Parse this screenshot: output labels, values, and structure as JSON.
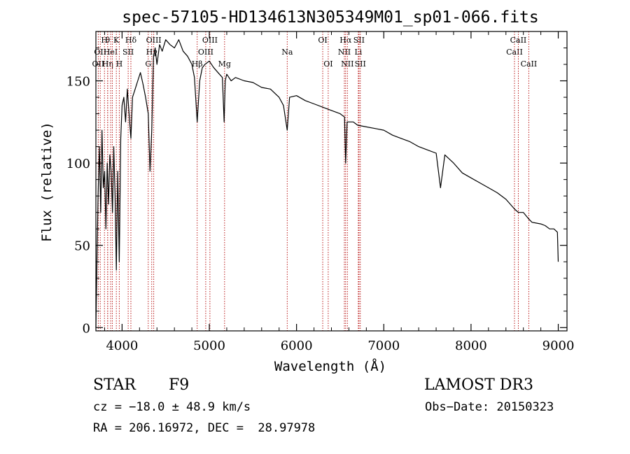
{
  "chart_data": {
    "type": "line",
    "title": "spec-57105-HD134613N305349M01_sp01-066.fits",
    "xlabel": "Wavelength (Å)",
    "ylabel": "Flux (relative)",
    "xlim": [
      3700,
      9100
    ],
    "ylim": [
      -2,
      180
    ],
    "x_ticks": [
      4000,
      5000,
      6000,
      7000,
      8000,
      9000
    ],
    "y_ticks": [
      0,
      50,
      100,
      150
    ],
    "x_tick_labels": [
      "4000",
      "5000",
      "6000",
      "7000",
      "8000",
      "9000"
    ],
    "y_tick_labels": [
      "0",
      "50",
      "100",
      "150"
    ],
    "series": [
      {
        "name": "spectrum",
        "x": [
          3700,
          3712,
          3725,
          3740,
          3755,
          3770,
          3785,
          3800,
          3815,
          3830,
          3845,
          3860,
          3875,
          3890,
          3905,
          3920,
          3934,
          3950,
          3968,
          3985,
          4000,
          4020,
          4040,
          4060,
          4080,
          4101,
          4120,
          4150,
          4180,
          4210,
          4240,
          4270,
          4300,
          4320,
          4340,
          4360,
          4380,
          4400,
          4430,
          4460,
          4500,
          4550,
          4600,
          4650,
          4700,
          4750,
          4800,
          4830,
          4861,
          4890,
          4920,
          4950,
          5000,
          5050,
          5100,
          5150,
          5170,
          5183,
          5200,
          5250,
          5300,
          5400,
          5500,
          5600,
          5700,
          5800,
          5850,
          5893,
          5920,
          6000,
          6100,
          6200,
          6300,
          6400,
          6500,
          6550,
          6563,
          6580,
          6650,
          6700,
          6800,
          6900,
          7000,
          7100,
          7200,
          7300,
          7400,
          7500,
          7600,
          7650,
          7700,
          7800,
          7900,
          8000,
          8100,
          8200,
          8300,
          8400,
          8500,
          8542,
          8600,
          8662,
          8700,
          8800,
          8850,
          8900,
          8950,
          8990,
          9000
        ],
        "y": [
          0,
          40,
          80,
          110,
          70,
          120,
          85,
          95,
          60,
          100,
          75,
          105,
          95,
          70,
          110,
          80,
          35,
          95,
          40,
          115,
          135,
          140,
          125,
          145,
          130,
          115,
          140,
          145,
          150,
          155,
          148,
          140,
          130,
          95,
          120,
          165,
          170,
          160,
          172,
          168,
          175,
          172,
          170,
          175,
          168,
          165,
          160,
          152,
          125,
          150,
          158,
          160,
          162,
          158,
          155,
          152,
          125,
          150,
          154,
          150,
          152,
          150,
          149,
          146,
          145,
          140,
          135,
          120,
          140,
          141,
          138,
          136,
          134,
          132,
          130,
          128,
          100,
          125,
          125,
          123,
          122,
          121,
          120,
          117,
          115,
          113,
          110,
          108,
          106,
          85,
          105,
          100,
          94,
          91,
          88,
          85,
          82,
          78,
          72,
          70,
          70,
          66,
          64,
          63,
          62,
          60,
          60,
          58,
          40
        ]
      }
    ],
    "lines": [
      {
        "wavelength": 3727,
        "row": 2,
        "label": "OII"
      },
      {
        "wavelength": 3750,
        "row": 1,
        "label": "OII"
      },
      {
        "wavelength": 3798,
        "row": 0,
        "label": "H"
      },
      {
        "wavelength": 3835,
        "row": 0,
        "label": "θ"
      },
      {
        "wavelength": 3835,
        "row": 2,
        "label": "Hη"
      },
      {
        "wavelength": 3869,
        "row": 1,
        "label": "HeI"
      },
      {
        "wavelength": 3889,
        "row": 1,
        "label": ""
      },
      {
        "wavelength": 3934,
        "row": 0,
        "label": "K"
      },
      {
        "wavelength": 3968,
        "row": 2,
        "label": "H"
      },
      {
        "wavelength": 4070,
        "row": 1,
        "label": "SII"
      },
      {
        "wavelength": 4101,
        "row": 0,
        "label": "Hδ"
      },
      {
        "wavelength": 4300,
        "row": 2,
        "label": "G"
      },
      {
        "wavelength": 4340,
        "row": 1,
        "label": "Hγ"
      },
      {
        "wavelength": 4363,
        "row": 0,
        "label": "OIII"
      },
      {
        "wavelength": 4861,
        "row": 2,
        "label": "Hβ"
      },
      {
        "wavelength": 4959,
        "row": 1,
        "label": "OIII"
      },
      {
        "wavelength": 5007,
        "row": 0,
        "label": "OIII"
      },
      {
        "wavelength": 5175,
        "row": 2,
        "label": "Mg"
      },
      {
        "wavelength": 5893,
        "row": 1,
        "label": "Na"
      },
      {
        "wavelength": 6300,
        "row": 0,
        "label": "OI"
      },
      {
        "wavelength": 6363,
        "row": 2,
        "label": "OI"
      },
      {
        "wavelength": 6548,
        "row": 1,
        "label": "NII"
      },
      {
        "wavelength": 6563,
        "row": 0,
        "label": "Hα"
      },
      {
        "wavelength": 6583,
        "row": 2,
        "label": "NII"
      },
      {
        "wavelength": 6708,
        "row": 1,
        "label": "Li"
      },
      {
        "wavelength": 6716,
        "row": 0,
        "label": "SII"
      },
      {
        "wavelength": 6731,
        "row": 2,
        "label": "SII"
      },
      {
        "wavelength": 8498,
        "row": 1,
        "label": "CaII"
      },
      {
        "wavelength": 8542,
        "row": 0,
        "label": "CaII"
      },
      {
        "wavelength": 8662,
        "row": 2,
        "label": "CaII"
      }
    ]
  },
  "info": {
    "object_class": "STAR",
    "subclass": "F9",
    "survey": "LAMOST DR3",
    "redshift_line": "cz = −18.0 ± 48.9 km/s",
    "obs_date": "Obs−Date: 20150323",
    "coords": "RA = 206.16972, DEC =  28.97978"
  },
  "colors": {
    "spectrum": "#000000",
    "line_marker": "#b30000",
    "axes": "#000000",
    "background": "#ffffff"
  }
}
